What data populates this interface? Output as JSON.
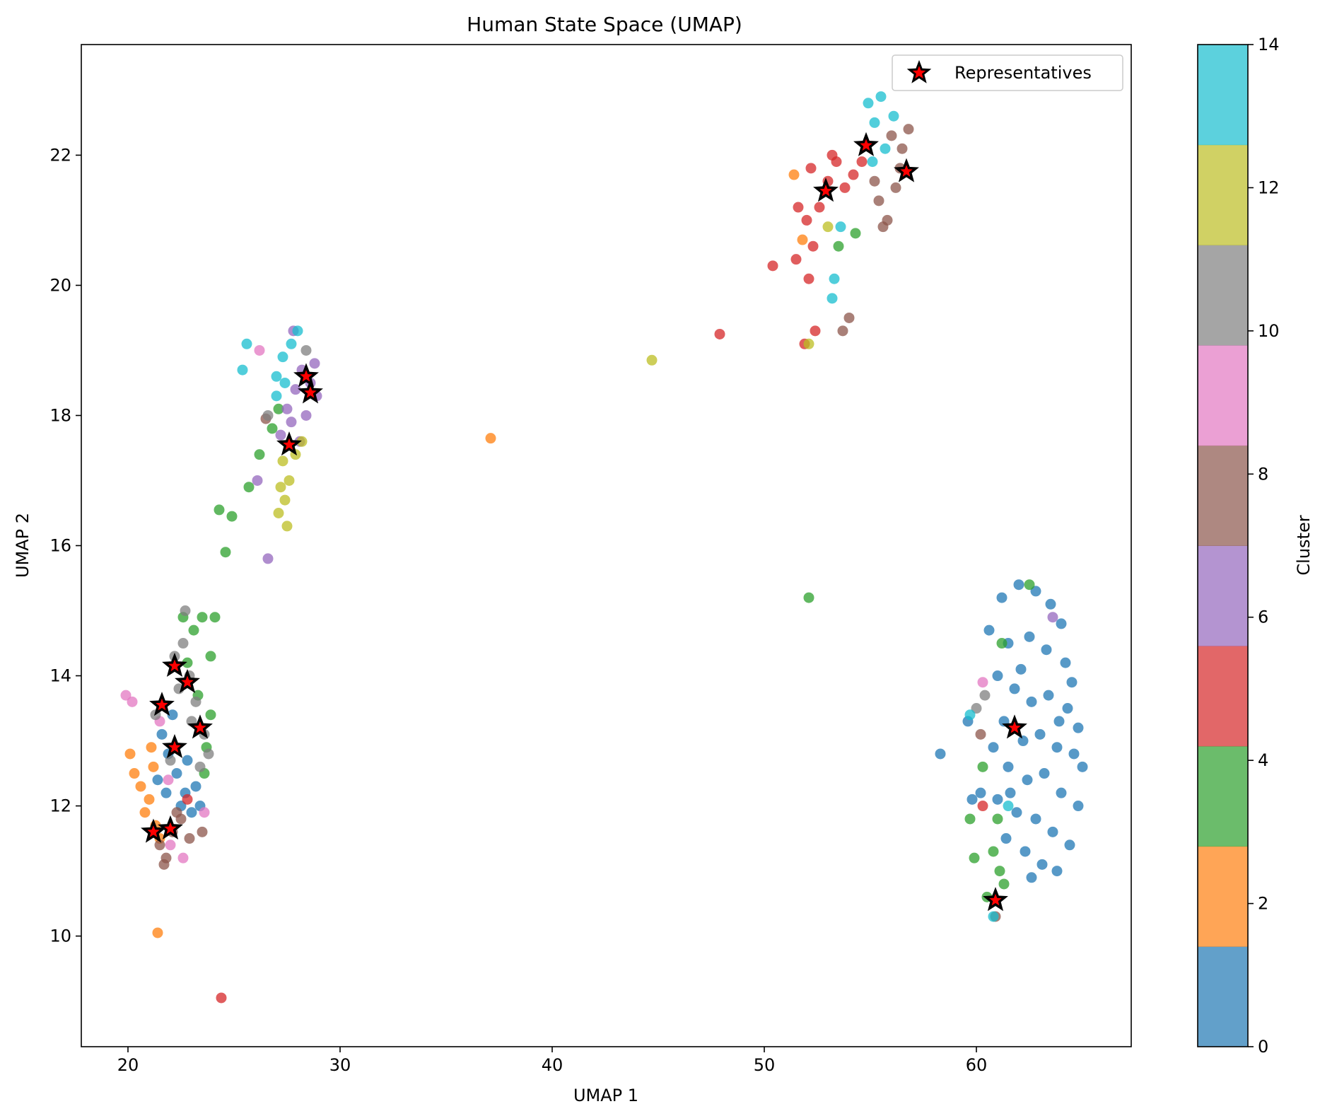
{
  "chart_data": {
    "type": "scatter",
    "title": "Human State Space (UMAP)",
    "xlabel": "UMAP 1",
    "ylabel": "UMAP 2",
    "xlim": [
      17.8,
      67.3
    ],
    "ylim": [
      8.3,
      23.7
    ],
    "x_ticks": [
      20,
      30,
      40,
      50,
      60
    ],
    "y_ticks": [
      10,
      12,
      14,
      16,
      18,
      20,
      22
    ],
    "grid": false,
    "legend": {
      "position": "top-right",
      "entries": [
        "Representatives"
      ]
    },
    "colorbar": {
      "label": "Cluster",
      "range": [
        0,
        14
      ],
      "ticks": [
        0,
        2,
        4,
        6,
        8,
        10,
        12,
        14
      ],
      "colors": [
        "#1f77b4",
        "#ff7f0e",
        "#2ca02c",
        "#d62728",
        "#9467bd",
        "#8c564b",
        "#e377c2",
        "#7f7f7f",
        "#bcbd22",
        "#17becf"
      ]
    },
    "clusters": [
      {
        "cluster": 0,
        "color": "#1f77b4",
        "points": [
          [
            61.2,
            15.2
          ],
          [
            62.0,
            15.4
          ],
          [
            62.8,
            15.3
          ],
          [
            63.5,
            15.1
          ],
          [
            64.0,
            14.8
          ],
          [
            61.5,
            14.5
          ],
          [
            62.5,
            14.6
          ],
          [
            63.3,
            14.4
          ],
          [
            64.2,
            14.2
          ],
          [
            64.5,
            13.9
          ],
          [
            61.0,
            14.0
          ],
          [
            61.8,
            13.8
          ],
          [
            62.6,
            13.6
          ],
          [
            63.4,
            13.7
          ],
          [
            64.3,
            13.5
          ],
          [
            64.8,
            13.2
          ],
          [
            61.3,
            13.3
          ],
          [
            62.2,
            13.0
          ],
          [
            63.0,
            13.1
          ],
          [
            63.8,
            12.9
          ],
          [
            64.6,
            12.8
          ],
          [
            65.0,
            12.6
          ],
          [
            60.8,
            12.9
          ],
          [
            61.5,
            12.6
          ],
          [
            62.4,
            12.4
          ],
          [
            63.2,
            12.5
          ],
          [
            64.0,
            12.2
          ],
          [
            64.8,
            12.0
          ],
          [
            61.0,
            12.1
          ],
          [
            61.9,
            11.9
          ],
          [
            62.8,
            11.8
          ],
          [
            63.6,
            11.6
          ],
          [
            64.4,
            11.4
          ],
          [
            61.4,
            11.5
          ],
          [
            62.3,
            11.3
          ],
          [
            63.1,
            11.1
          ],
          [
            62.6,
            10.9
          ],
          [
            63.8,
            11.0
          ],
          [
            58.3,
            12.8
          ],
          [
            59.6,
            13.3
          ],
          [
            59.8,
            12.1
          ],
          [
            60.6,
            14.7
          ],
          [
            61.6,
            12.2
          ],
          [
            62.1,
            14.1
          ],
          [
            63.9,
            13.3
          ],
          [
            60.2,
            12.2
          ]
        ]
      },
      {
        "cluster": 1,
        "color": "#1f77b4",
        "points": [
          [
            21.6,
            13.1
          ],
          [
            21.9,
            12.8
          ],
          [
            22.3,
            12.5
          ],
          [
            22.8,
            12.7
          ],
          [
            23.2,
            12.3
          ],
          [
            21.8,
            12.2
          ],
          [
            22.5,
            12.0
          ],
          [
            23.0,
            11.9
          ],
          [
            21.4,
            12.4
          ],
          [
            23.4,
            12.0
          ],
          [
            22.1,
            13.4
          ],
          [
            22.7,
            12.2
          ]
        ]
      },
      {
        "cluster": 2,
        "color": "#ff7f0e",
        "points": [
          [
            20.1,
            12.8
          ],
          [
            20.3,
            12.5
          ],
          [
            20.6,
            12.3
          ],
          [
            21.0,
            12.1
          ],
          [
            21.2,
            12.6
          ],
          [
            21.1,
            12.9
          ],
          [
            20.8,
            11.9
          ],
          [
            21.3,
            11.7
          ],
          [
            21.5,
            11.5
          ],
          [
            21.4,
            10.05
          ],
          [
            37.1,
            17.65
          ],
          [
            51.4,
            21.7
          ],
          [
            51.8,
            20.7
          ]
        ]
      },
      {
        "cluster": 4,
        "color": "#2ca02c",
        "points": [
          [
            22.6,
            14.9
          ],
          [
            23.1,
            14.7
          ],
          [
            23.5,
            14.9
          ],
          [
            24.1,
            14.9
          ],
          [
            23.9,
            14.3
          ],
          [
            22.8,
            14.2
          ],
          [
            23.3,
            13.7
          ],
          [
            23.9,
            13.4
          ],
          [
            23.7,
            12.9
          ],
          [
            23.6,
            12.5
          ],
          [
            24.3,
            16.55
          ],
          [
            24.9,
            16.45
          ],
          [
            24.6,
            15.9
          ],
          [
            25.7,
            16.9
          ],
          [
            26.2,
            17.4
          ],
          [
            26.8,
            17.8
          ],
          [
            27.1,
            18.1
          ],
          [
            52.1,
            15.2
          ],
          [
            61.2,
            14.5
          ],
          [
            61.0,
            11.8
          ],
          [
            60.3,
            12.6
          ],
          [
            60.8,
            11.3
          ],
          [
            61.1,
            11.0
          ],
          [
            60.5,
            10.6
          ],
          [
            61.3,
            10.8
          ],
          [
            59.7,
            11.8
          ],
          [
            59.9,
            11.2
          ],
          [
            62.5,
            15.4
          ],
          [
            53.5,
            20.6
          ],
          [
            54.3,
            20.8
          ]
        ]
      },
      {
        "cluster": 5,
        "color": "#d62728",
        "points": [
          [
            24.4,
            9.05
          ],
          [
            47.9,
            19.25
          ],
          [
            50.4,
            20.3
          ],
          [
            51.5,
            20.4
          ],
          [
            52.0,
            21.0
          ],
          [
            52.3,
            20.6
          ],
          [
            52.6,
            21.2
          ],
          [
            53.0,
            21.6
          ],
          [
            53.4,
            21.9
          ],
          [
            53.8,
            21.5
          ],
          [
            54.2,
            21.7
          ],
          [
            52.1,
            20.1
          ],
          [
            52.4,
            19.3
          ],
          [
            51.9,
            19.1
          ],
          [
            52.2,
            21.8
          ],
          [
            53.2,
            22.0
          ],
          [
            54.6,
            21.9
          ],
          [
            51.6,
            21.2
          ],
          [
            22.8,
            12.1
          ],
          [
            60.3,
            12.0
          ]
        ]
      },
      {
        "cluster": 6,
        "color": "#9467bd",
        "points": [
          [
            27.5,
            18.1
          ],
          [
            27.9,
            18.4
          ],
          [
            28.2,
            18.7
          ],
          [
            28.6,
            18.5
          ],
          [
            28.9,
            18.3
          ],
          [
            27.7,
            17.9
          ],
          [
            28.1,
            17.6
          ],
          [
            28.4,
            18.0
          ],
          [
            27.2,
            17.7
          ],
          [
            28.8,
            18.8
          ],
          [
            27.8,
            19.3
          ],
          [
            26.6,
            15.8
          ],
          [
            26.1,
            17.0
          ],
          [
            63.6,
            14.9
          ]
        ]
      },
      {
        "cluster": 7,
        "color": "#8c564b",
        "points": [
          [
            21.5,
            11.4
          ],
          [
            21.8,
            11.2
          ],
          [
            22.1,
            11.6
          ],
          [
            22.5,
            11.8
          ],
          [
            22.9,
            11.5
          ],
          [
            23.5,
            11.6
          ],
          [
            21.7,
            11.1
          ],
          [
            22.3,
            11.9
          ],
          [
            55.4,
            21.3
          ],
          [
            55.8,
            21.0
          ],
          [
            56.2,
            21.5
          ],
          [
            56.5,
            22.1
          ],
          [
            56.8,
            22.4
          ],
          [
            56.0,
            22.3
          ],
          [
            55.2,
            21.6
          ],
          [
            56.4,
            21.8
          ],
          [
            53.7,
            19.3
          ],
          [
            54.0,
            19.5
          ],
          [
            55.6,
            20.9
          ],
          [
            60.9,
            10.3
          ],
          [
            60.2,
            13.1
          ],
          [
            26.5,
            17.95
          ]
        ]
      },
      {
        "cluster": 8,
        "color": "#e377c2",
        "points": [
          [
            19.9,
            13.7
          ],
          [
            20.2,
            13.6
          ],
          [
            21.5,
            13.3
          ],
          [
            22.0,
            11.4
          ],
          [
            22.6,
            11.2
          ],
          [
            23.6,
            11.9
          ],
          [
            21.9,
            12.4
          ],
          [
            26.2,
            19.0
          ],
          [
            60.3,
            13.9
          ]
        ]
      },
      {
        "cluster": 9,
        "color": "#7f7f7f",
        "points": [
          [
            22.2,
            14.3
          ],
          [
            22.6,
            14.5
          ],
          [
            22.9,
            14.0
          ],
          [
            23.2,
            13.6
          ],
          [
            23.6,
            13.1
          ],
          [
            23.0,
            13.3
          ],
          [
            22.4,
            13.8
          ],
          [
            21.3,
            13.4
          ],
          [
            23.8,
            12.8
          ],
          [
            22.7,
            15.0
          ],
          [
            23.4,
            12.6
          ],
          [
            22.0,
            12.7
          ],
          [
            26.6,
            18.0
          ],
          [
            28.4,
            19.0
          ],
          [
            60.0,
            13.5
          ],
          [
            60.4,
            13.7
          ]
        ]
      },
      {
        "cluster": 10,
        "color": "#bcbd22",
        "points": [
          [
            27.3,
            17.3
          ],
          [
            27.6,
            17.0
          ],
          [
            27.4,
            16.7
          ],
          [
            27.1,
            16.5
          ],
          [
            27.5,
            16.3
          ],
          [
            27.9,
            17.4
          ],
          [
            28.2,
            17.6
          ],
          [
            44.7,
            18.85
          ],
          [
            52.1,
            19.1
          ],
          [
            53.0,
            20.9
          ],
          [
            27.2,
            16.9
          ]
        ]
      },
      {
        "cluster": 11,
        "color": "#17becf",
        "points": [
          [
            25.4,
            18.7
          ],
          [
            25.6,
            19.1
          ],
          [
            27.0,
            18.6
          ],
          [
            27.3,
            18.9
          ],
          [
            27.7,
            19.1
          ],
          [
            28.0,
            19.3
          ],
          [
            27.0,
            18.3
          ],
          [
            27.4,
            18.5
          ],
          [
            54.9,
            22.8
          ],
          [
            55.5,
            22.9
          ],
          [
            55.2,
            22.5
          ],
          [
            55.7,
            22.1
          ],
          [
            56.1,
            22.6
          ],
          [
            55.1,
            21.9
          ],
          [
            53.3,
            20.1
          ],
          [
            53.6,
            20.9
          ],
          [
            53.2,
            19.8
          ],
          [
            59.7,
            13.4
          ],
          [
            60.8,
            10.3
          ],
          [
            61.5,
            12.0
          ]
        ]
      }
    ],
    "representatives": [
      [
        21.6,
        13.55
      ],
      [
        22.2,
        14.15
      ],
      [
        22.8,
        13.9
      ],
      [
        23.4,
        13.2
      ],
      [
        22.2,
        12.9
      ],
      [
        21.2,
        11.6
      ],
      [
        22.0,
        11.65
      ],
      [
        27.6,
        17.55
      ],
      [
        28.4,
        18.6
      ],
      [
        28.6,
        18.35
      ],
      [
        52.9,
        21.45
      ],
      [
        54.8,
        22.15
      ],
      [
        56.7,
        21.75
      ],
      [
        61.8,
        13.2
      ],
      [
        60.9,
        10.55
      ]
    ],
    "representative_marker": {
      "face": "#ff0000",
      "edge": "#000000"
    }
  }
}
